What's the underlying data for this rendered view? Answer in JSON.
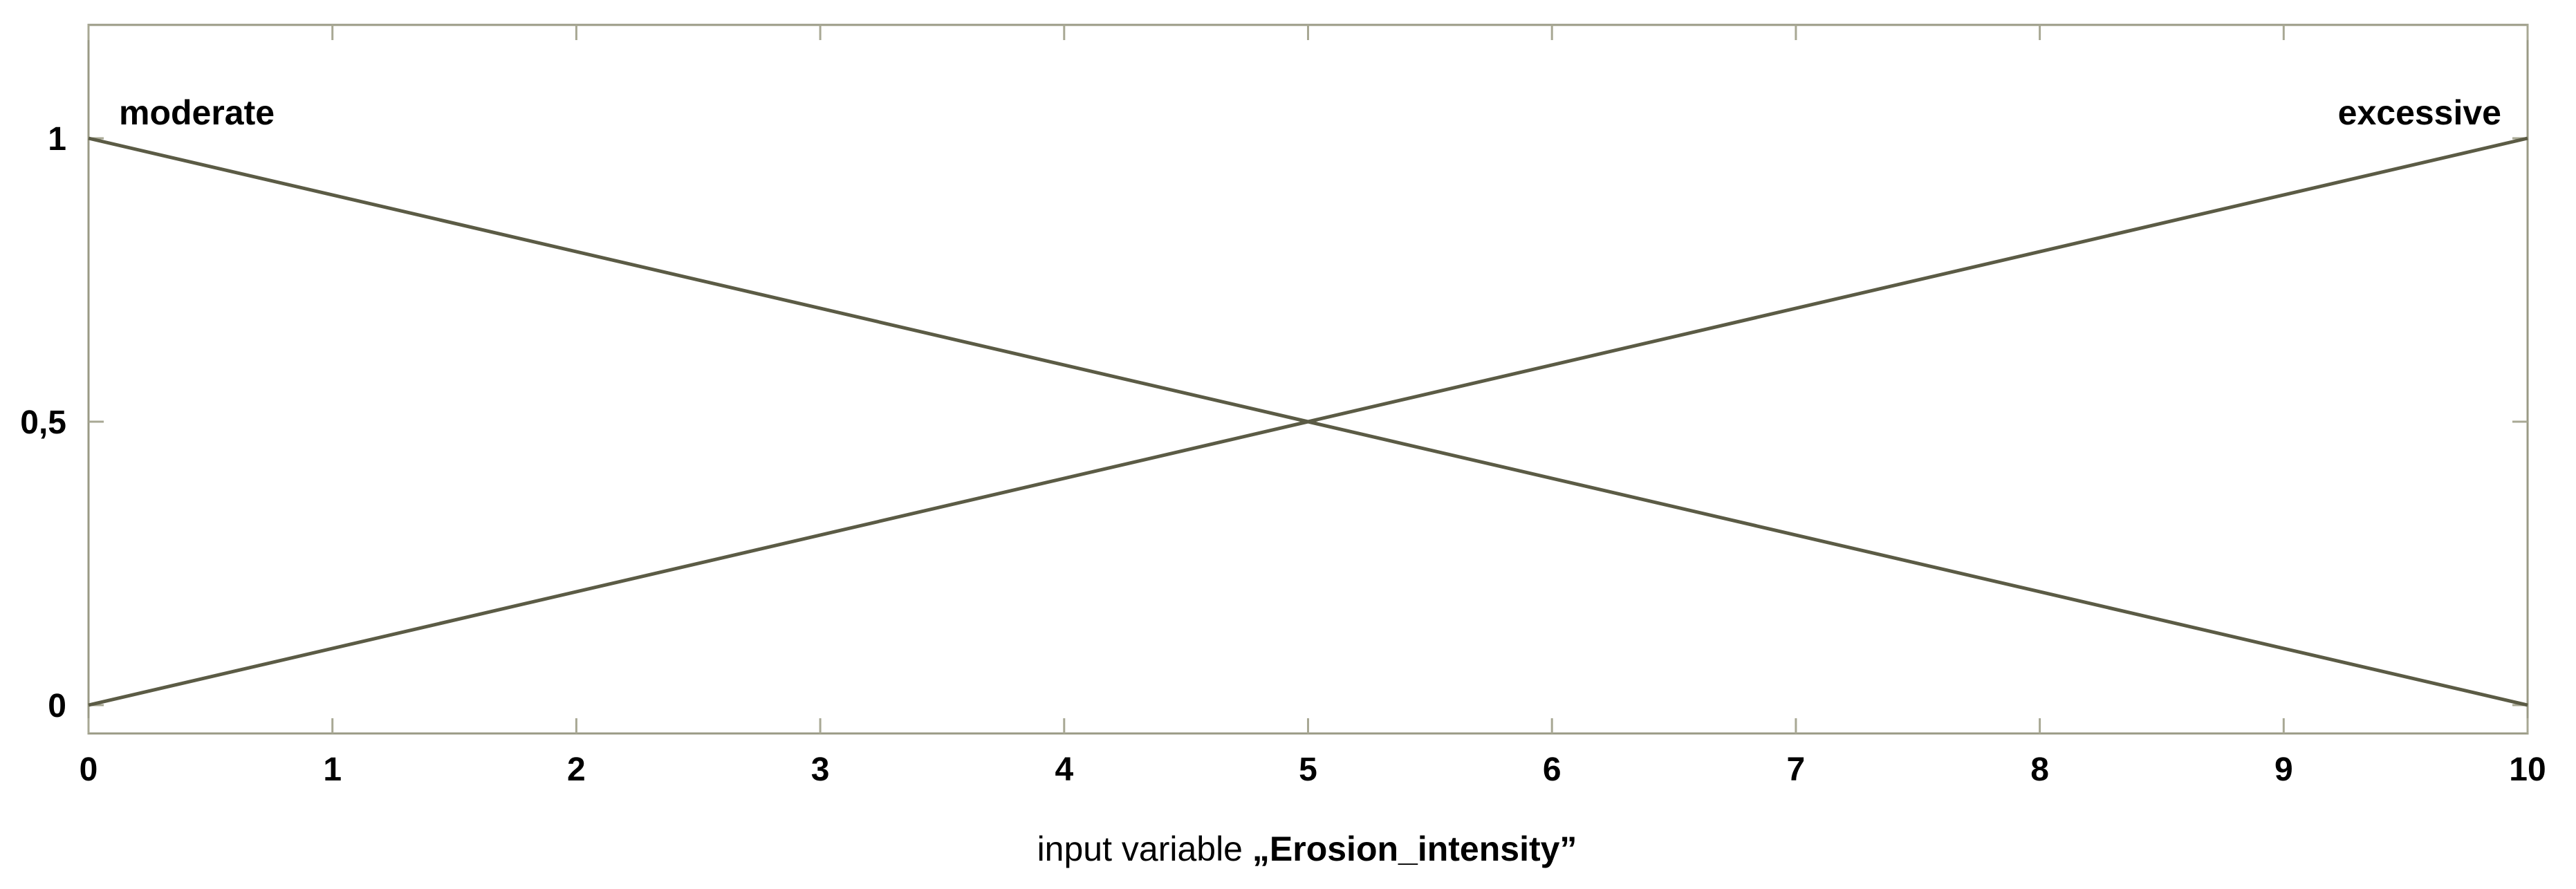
{
  "chart_data": {
    "type": "line",
    "xlabel_prefix": "input variable ",
    "xlabel_var": "„Erosion_intensity”",
    "xlim": [
      0,
      10
    ],
    "ylim": [
      -0.05,
      1.2
    ],
    "x_ticks": [
      0,
      1,
      2,
      3,
      4,
      5,
      6,
      7,
      8,
      9,
      10
    ],
    "x_tick_labels": [
      "0",
      "1",
      "2",
      "3",
      "4",
      "5",
      "6",
      "7",
      "8",
      "9",
      "10"
    ],
    "y_ticks": [
      0,
      0.5,
      1
    ],
    "y_tick_labels": [
      "0",
      "0,5",
      "1"
    ],
    "grid": false,
    "series": [
      {
        "name": "moderate",
        "x": [
          0,
          10
        ],
        "y": [
          1,
          0
        ]
      },
      {
        "name": "excessive",
        "x": [
          0,
          10
        ],
        "y": [
          0,
          1
        ]
      }
    ],
    "colors": {
      "line": "#5b5b45",
      "axis": "#9a9a85",
      "tick": "#a8a894"
    }
  }
}
